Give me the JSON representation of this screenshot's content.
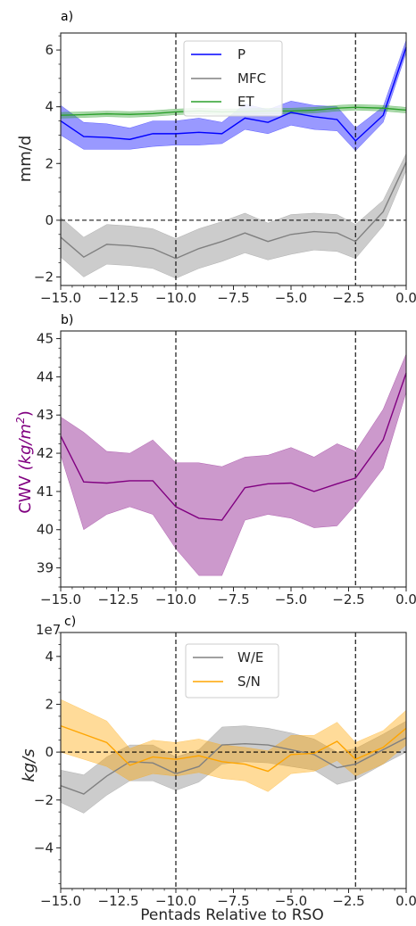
{
  "chart_data": [
    {
      "panel_label": "a)",
      "type": "line",
      "ylabel": "mm/d",
      "xlim": [
        -15.0,
        0.0
      ],
      "ylim": [
        -2.3,
        6.6
      ],
      "xticks": [
        -15.0,
        -12.5,
        -10.0,
        -7.5,
        -5.0,
        -2.5,
        0.0
      ],
      "xtick_labels": [
        "−15.0",
        "−12.5",
        "−10.0",
        "−7.5",
        "−5.0",
        "−2.5",
        "0.0"
      ],
      "yticks": [
        -2,
        0,
        2,
        4,
        6
      ],
      "ytick_labels": [
        "−2",
        "0",
        "2",
        "4",
        "6"
      ],
      "legend_position": "top-center",
      "hlines": [
        0
      ],
      "vlines": [
        -10,
        -2.2
      ],
      "x": [
        -15,
        -14,
        -13,
        -12,
        -11,
        -10,
        -9,
        -8,
        -7,
        -6,
        -5,
        -4,
        -3,
        -2.2,
        -1,
        0
      ],
      "series": [
        {
          "name": "P",
          "color": "#0000ff",
          "values": [
            3.5,
            2.95,
            2.92,
            2.85,
            3.05,
            3.05,
            3.1,
            3.05,
            3.6,
            3.45,
            3.8,
            3.65,
            3.55,
            2.8,
            3.7,
            6.1
          ],
          "lower": [
            3.0,
            2.5,
            2.5,
            2.5,
            2.6,
            2.65,
            2.65,
            2.7,
            3.2,
            3.05,
            3.35,
            3.2,
            3.15,
            2.45,
            3.45,
            5.9
          ],
          "upper": [
            4.05,
            3.45,
            3.4,
            3.25,
            3.5,
            3.5,
            3.6,
            3.45,
            4.1,
            3.9,
            4.2,
            4.05,
            4.0,
            3.25,
            4.0,
            6.35
          ]
        },
        {
          "name": "MFC",
          "color": "#808080",
          "values": [
            -0.6,
            -1.3,
            -0.85,
            -0.9,
            -1.0,
            -1.35,
            -1.0,
            -0.75,
            -0.45,
            -0.75,
            -0.5,
            -0.4,
            -0.45,
            -0.75,
            0.3,
            2.05
          ],
          "lower": [
            -1.3,
            -2.0,
            -1.55,
            -1.6,
            -1.7,
            -2.05,
            -1.7,
            -1.45,
            -1.15,
            -1.4,
            -1.2,
            -1.05,
            -1.1,
            -1.35,
            -0.2,
            1.75
          ],
          "upper": [
            0.1,
            -0.6,
            -0.15,
            -0.2,
            -0.3,
            -0.65,
            -0.3,
            -0.05,
            0.25,
            -0.1,
            0.2,
            0.25,
            0.2,
            -0.15,
            0.7,
            2.35
          ]
        },
        {
          "name": "ET",
          "color": "#2ca02c",
          "values": [
            3.7,
            3.72,
            3.75,
            3.73,
            3.76,
            3.82,
            3.85,
            3.82,
            3.83,
            3.85,
            3.85,
            3.88,
            3.95,
            3.98,
            3.95,
            3.88
          ],
          "lower": [
            3.6,
            3.62,
            3.65,
            3.63,
            3.66,
            3.72,
            3.75,
            3.72,
            3.73,
            3.75,
            3.75,
            3.78,
            3.85,
            3.88,
            3.85,
            3.78
          ],
          "upper": [
            3.8,
            3.82,
            3.85,
            3.83,
            3.86,
            3.92,
            3.95,
            3.92,
            3.93,
            3.95,
            3.95,
            3.98,
            4.05,
            4.08,
            4.05,
            3.98
          ]
        }
      ]
    },
    {
      "panel_label": "b)",
      "type": "line",
      "ylabel_prefix": "CWV ",
      "ylabel_unit_base": "(kg/m",
      "ylabel_unit_sup": "2",
      "ylabel_unit_end": ")",
      "ylabel_color": "#800080",
      "xlim": [
        -15.0,
        0.0
      ],
      "ylim": [
        38.5,
        45.2
      ],
      "xticks": [
        -15.0,
        -12.5,
        -10.0,
        -7.5,
        -5.0,
        -2.5,
        0.0
      ],
      "xtick_labels": [
        "−15.0",
        "−12.5",
        "−10.0",
        "−7.5",
        "−5.0",
        "−2.5",
        "0.0"
      ],
      "yticks": [
        39,
        40,
        41,
        42,
        43,
        44,
        45
      ],
      "ytick_labels": [
        "39",
        "40",
        "41",
        "42",
        "43",
        "44",
        "45"
      ],
      "vlines": [
        -10,
        -2.2
      ],
      "x": [
        -15,
        -14,
        -13,
        -12,
        -11,
        -10,
        -9,
        -8,
        -7,
        -6,
        -5,
        -4,
        -3,
        -2.2,
        -1,
        0
      ],
      "series": [
        {
          "name": "",
          "color": "#800080",
          "values": [
            42.45,
            41.25,
            41.22,
            41.28,
            41.28,
            40.6,
            40.3,
            40.25,
            41.1,
            41.2,
            41.22,
            41.0,
            41.2,
            41.35,
            42.35,
            44.1
          ],
          "lower": [
            41.95,
            40.0,
            40.4,
            40.6,
            40.4,
            39.5,
            38.8,
            38.8,
            40.25,
            40.4,
            40.3,
            40.05,
            40.1,
            40.65,
            41.6,
            43.6
          ],
          "upper": [
            42.95,
            42.55,
            42.05,
            42.0,
            42.35,
            41.75,
            41.75,
            41.65,
            41.9,
            41.95,
            42.15,
            41.9,
            42.25,
            42.05,
            43.15,
            44.6
          ]
        }
      ]
    },
    {
      "panel_label": "c)",
      "type": "line",
      "ylabel": "kg/s",
      "scale_label": "1e7",
      "xlabel": "Pentads Relative to RSO",
      "xlim": [
        -15.0,
        0.0
      ],
      "ylim": [
        -5.7,
        5.0
      ],
      "xticks": [
        -15.0,
        -12.5,
        -10.0,
        -7.5,
        -5.0,
        -2.5,
        0.0
      ],
      "xtick_labels": [
        "−15.0",
        "−12.5",
        "−10.0",
        "−7.5",
        "−5.0",
        "−2.5",
        "0.0"
      ],
      "yticks": [
        -4,
        -2,
        0,
        2,
        4
      ],
      "ytick_labels": [
        "−4",
        "−2",
        "0",
        "2",
        "4"
      ],
      "legend_position": "top-center",
      "hlines": [
        0
      ],
      "vlines": [
        -10,
        -2.2
      ],
      "x": [
        -15,
        -14,
        -13,
        -12,
        -11,
        -10,
        -9,
        -8,
        -7,
        -6,
        -5,
        -4,
        -3,
        -2.2,
        -1,
        0
      ],
      "series": [
        {
          "name": "W/E",
          "color": "#808080",
          "values": [
            -1.4,
            -1.75,
            -1.0,
            -0.4,
            -0.45,
            -0.9,
            -0.6,
            0.3,
            0.35,
            0.3,
            0.1,
            -0.1,
            -0.65,
            -0.5,
            0.1,
            0.6
          ],
          "lower": [
            -2.1,
            -2.55,
            -1.8,
            -1.2,
            -1.2,
            -1.6,
            -1.25,
            -0.5,
            -0.4,
            -0.45,
            -0.6,
            -0.75,
            -1.35,
            -1.15,
            -0.5,
            0.0
          ],
          "upper": [
            -0.75,
            -0.95,
            -0.2,
            0.3,
            0.3,
            -0.2,
            0.1,
            1.05,
            1.1,
            1.0,
            0.8,
            0.55,
            0.0,
            0.15,
            0.75,
            1.3
          ]
        },
        {
          "name": "S/N",
          "color": "#ffa500",
          "values": [
            1.1,
            0.75,
            0.4,
            -0.55,
            -0.2,
            -0.3,
            -0.15,
            -0.4,
            -0.5,
            -0.8,
            -0.1,
            -0.05,
            0.45,
            -0.3,
            0.2,
            1.0
          ],
          "lower": [
            0.0,
            -0.3,
            -0.6,
            -1.2,
            -0.9,
            -1.0,
            -0.85,
            -1.1,
            -1.2,
            -1.65,
            -0.9,
            -0.8,
            -0.35,
            -1.0,
            -0.5,
            0.3
          ],
          "upper": [
            2.2,
            1.75,
            1.3,
            0.15,
            0.5,
            0.4,
            0.55,
            0.3,
            0.2,
            0.05,
            0.7,
            0.7,
            1.25,
            0.4,
            0.9,
            1.75
          ]
        }
      ]
    }
  ]
}
